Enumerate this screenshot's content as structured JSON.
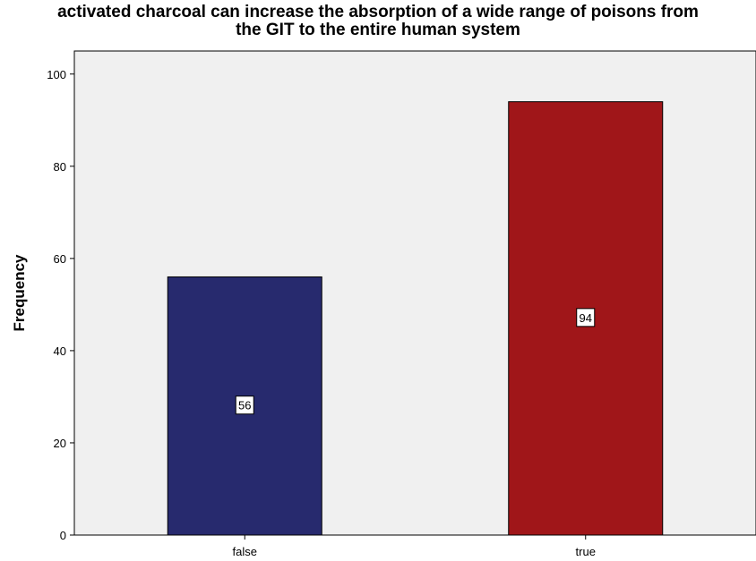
{
  "chart_data": {
    "type": "bar",
    "title_lines": [
      "activated charcoal can increase the absorption of a wide range of poisons from",
      "the GIT to the entire human system"
    ],
    "xlabel": "",
    "ylabel": "Frequency",
    "categories": [
      "false",
      "true"
    ],
    "values": [
      56,
      94
    ],
    "data_labels": [
      "56",
      "94"
    ],
    "ylim": [
      0,
      105
    ],
    "yticks": [
      0,
      20,
      40,
      60,
      80,
      100
    ],
    "colors": [
      "#272a6e",
      "#a01619"
    ],
    "plot_background": "#f0f0f0",
    "grid": false,
    "legend": "none"
  }
}
